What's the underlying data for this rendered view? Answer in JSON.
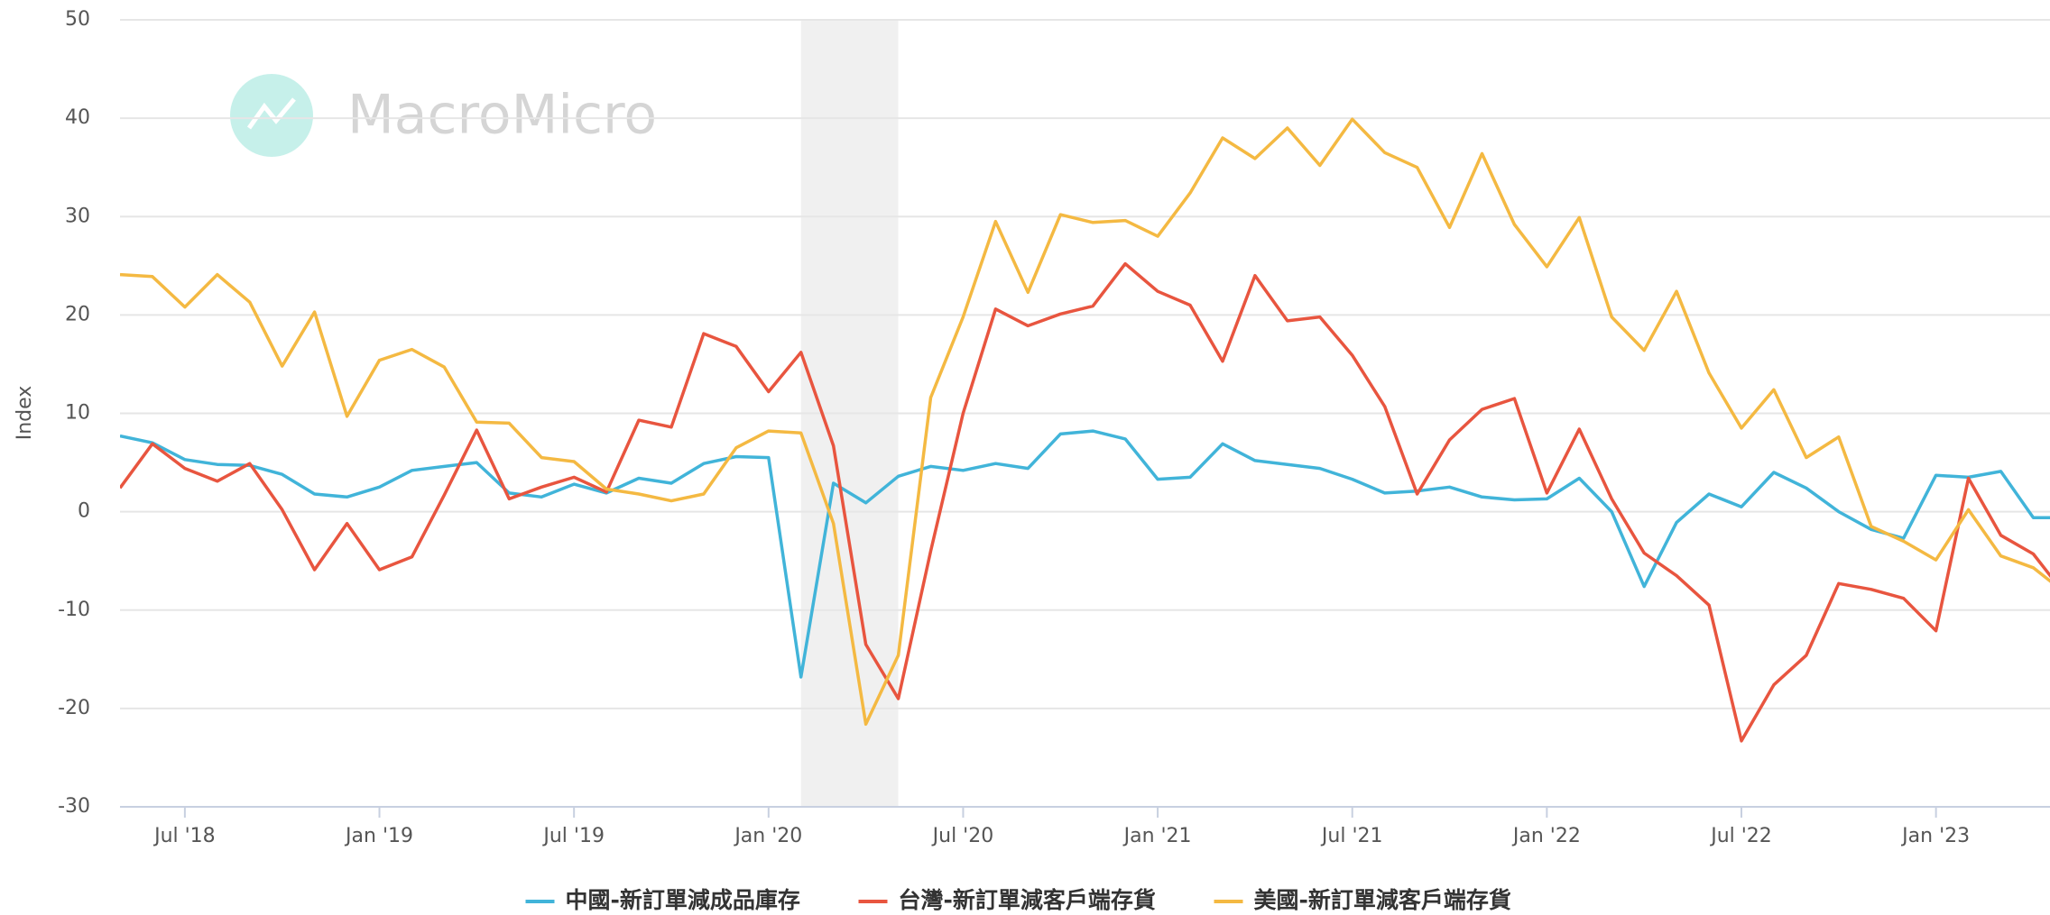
{
  "chart_data": {
    "type": "line",
    "watermark": "MacroMicro",
    "y_label": "Index",
    "x": [
      "2018-05",
      "2018-06",
      "2018-07",
      "2018-08",
      "2018-09",
      "2018-10",
      "2018-11",
      "2018-12",
      "2019-01",
      "2019-02",
      "2019-03",
      "2019-04",
      "2019-05",
      "2019-06",
      "2019-07",
      "2019-08",
      "2019-09",
      "2019-10",
      "2019-11",
      "2019-12",
      "2020-01",
      "2020-02",
      "2020-03",
      "2020-04",
      "2020-05",
      "2020-06",
      "2020-07",
      "2020-08",
      "2020-09",
      "2020-10",
      "2020-11",
      "2020-12",
      "2021-01",
      "2021-02",
      "2021-03",
      "2021-04",
      "2021-05",
      "2021-06",
      "2021-07",
      "2021-08",
      "2021-09",
      "2021-10",
      "2021-11",
      "2021-12",
      "2022-01",
      "2022-02",
      "2022-03",
      "2022-04",
      "2022-05",
      "2022-06",
      "2022-07",
      "2022-08",
      "2022-09",
      "2022-10",
      "2022-11",
      "2022-12",
      "2023-01",
      "2023-02",
      "2023-03",
      "2023-04",
      "2023-05"
    ],
    "xlim": [
      "2018-05",
      "2023-04"
    ],
    "xticks": [
      {
        "value": "2018-07",
        "label": "Jul '18"
      },
      {
        "value": "2019-01",
        "label": "Jan '19"
      },
      {
        "value": "2019-07",
        "label": "Jul '19"
      },
      {
        "value": "2020-01",
        "label": "Jan '20"
      },
      {
        "value": "2020-07",
        "label": "Jul '20"
      },
      {
        "value": "2021-01",
        "label": "Jan '21"
      },
      {
        "value": "2021-07",
        "label": "Jul '21"
      },
      {
        "value": "2022-01",
        "label": "Jan '22"
      },
      {
        "value": "2022-07",
        "label": "Jul '22"
      },
      {
        "value": "2023-01",
        "label": "Jan '23"
      }
    ],
    "ylim": [
      -30,
      50
    ],
    "yticks": [
      -30,
      -20,
      -10,
      0,
      10,
      20,
      30,
      40,
      50
    ],
    "grid": true,
    "shaded_periods": [
      [
        "2020-02",
        "2020-05"
      ]
    ],
    "legend": "bottom",
    "series": [
      {
        "name": "中國-新訂單減成品庫存",
        "color": "#41b4d9",
        "values": [
          7.7,
          7.0,
          5.3,
          4.8,
          4.7,
          3.8,
          1.8,
          1.5,
          2.5,
          4.2,
          4.6,
          5.0,
          1.9,
          1.5,
          2.8,
          1.9,
          3.4,
          2.9,
          4.9,
          5.6,
          5.5,
          -16.8,
          2.9,
          0.9,
          3.6,
          4.6,
          4.2,
          4.9,
          4.4,
          7.9,
          8.2,
          7.4,
          3.3,
          3.5,
          6.9,
          5.2,
          4.8,
          4.4,
          3.3,
          1.9,
          2.1,
          2.5,
          1.5,
          1.2,
          1.3,
          3.4,
          0.0,
          -7.6,
          -1.1,
          1.8,
          0.5,
          4.0,
          2.4,
          0.0,
          -1.8,
          -2.7,
          3.7,
          3.5,
          4.1,
          -0.6,
          -0.6
        ]
      },
      {
        "name": "台灣-新訂單減客戶端存貨",
        "color": "#e8553f",
        "values": [
          2.4,
          6.9,
          4.4,
          3.1,
          4.9,
          0.2,
          -5.9,
          -1.2,
          -5.9,
          -4.6,
          1.7,
          8.3,
          1.3,
          2.5,
          3.5,
          2.0,
          9.3,
          8.6,
          18.1,
          16.8,
          12.2,
          16.2,
          6.7,
          -13.5,
          -19.0,
          -4.0,
          10.0,
          20.6,
          18.9,
          20.1,
          20.9,
          25.2,
          22.4,
          21.0,
          15.3,
          24.0,
          19.4,
          19.8,
          15.9,
          10.7,
          1.8,
          7.3,
          10.4,
          11.5,
          1.9,
          8.4,
          1.3,
          -4.2,
          -6.5,
          -9.5,
          -23.3,
          -17.6,
          -14.6,
          -7.3,
          -7.9,
          -8.8,
          -12.1,
          3.4,
          -2.4,
          -4.3,
          -8.5
        ]
      },
      {
        "name": "美國-新訂單減客戶端存貨",
        "color": "#f4b942",
        "values": [
          24.1,
          23.9,
          20.8,
          24.1,
          21.3,
          14.8,
          20.3,
          9.7,
          15.4,
          16.5,
          14.7,
          9.1,
          9.0,
          5.5,
          5.1,
          2.3,
          1.8,
          1.1,
          1.8,
          6.5,
          8.2,
          8.0,
          -1.2,
          -21.6,
          -14.6,
          11.6,
          19.8,
          29.5,
          22.3,
          30.2,
          29.4,
          29.6,
          28.0,
          32.4,
          38.0,
          35.9,
          39.0,
          35.2,
          39.9,
          36.5,
          35.0,
          28.9,
          36.4,
          29.2,
          24.9,
          29.9,
          19.8,
          16.4,
          22.4,
          14.1,
          8.5,
          12.4,
          5.5,
          7.6,
          -1.5,
          -3.0,
          -4.9,
          0.2,
          -4.5,
          -5.7,
          -8.3
        ]
      }
    ]
  }
}
